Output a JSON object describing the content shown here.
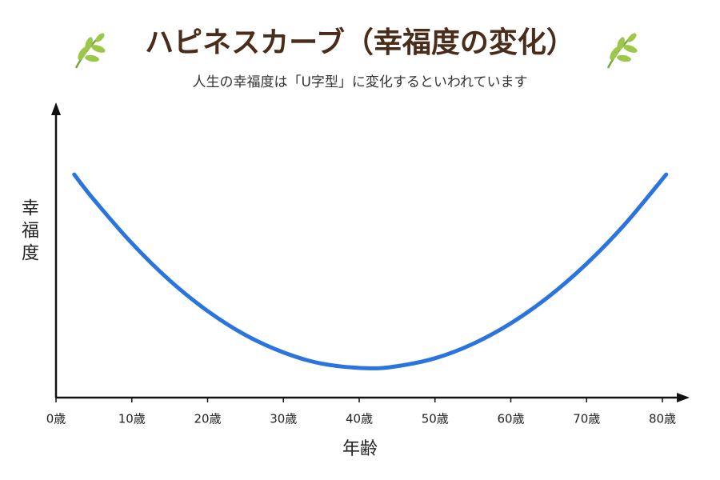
{
  "chart_data": {
    "type": "line",
    "title": "ハピネスカーブ（幸福度の変化）",
    "subtitle": "人生の幸福度は「U字型」に変化するといわれています",
    "x_label": "年齢",
    "y_label": "幸福度",
    "x": [
      2.4,
      5,
      10,
      15,
      20,
      25,
      30,
      35,
      41,
      45,
      50,
      55,
      60,
      65,
      70,
      75,
      80.5
    ],
    "series": [
      {
        "color": "#2a74e0",
        "values": [
          76,
          67.4,
          52.6,
          39.9,
          29.5,
          21.3,
          15.4,
          11.6,
          10,
          10.7,
          13.4,
          18.3,
          25.3,
          34.4,
          45.6,
          58.9,
          76
        ]
      }
    ],
    "xlim": [
      0,
      80
    ],
    "ylim": [
      0,
      100
    ],
    "xticks": [
      {
        "value": 0,
        "label": "0歳"
      },
      {
        "value": 10,
        "label": "10歳"
      },
      {
        "value": 20,
        "label": "20歳"
      },
      {
        "value": 30,
        "label": "30歳"
      },
      {
        "value": 40,
        "label": "40歳"
      },
      {
        "value": 50,
        "label": "50歳"
      },
      {
        "value": 60,
        "label": "60歳"
      },
      {
        "value": 70,
        "label": "70歳"
      },
      {
        "value": 80,
        "label": "80歳"
      }
    ],
    "grid": false
  }
}
